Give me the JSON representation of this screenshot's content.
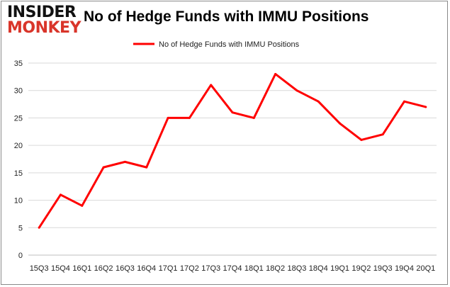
{
  "logo": {
    "line1": "INSIDER",
    "line2": "MONKEY"
  },
  "chart_data": {
    "type": "line",
    "title": "No of Hedge Funds with IMMU Positions",
    "categories": [
      "15Q3",
      "15Q4",
      "16Q1",
      "16Q2",
      "16Q3",
      "16Q4",
      "17Q1",
      "17Q2",
      "17Q3",
      "17Q4",
      "18Q1",
      "18Q2",
      "18Q3",
      "18Q4",
      "19Q1",
      "19Q2",
      "19Q3",
      "19Q4",
      "20Q1"
    ],
    "series": [
      {
        "name": "No of Hedge Funds with IMMU Positions",
        "color": "#ff0000",
        "values": [
          5,
          11,
          9,
          16,
          17,
          16,
          25,
          25,
          31,
          26,
          25,
          33,
          30,
          28,
          24,
          21,
          22,
          28,
          27
        ]
      }
    ],
    "yticks": [
      0,
      5,
      10,
      15,
      20,
      25,
      30,
      35
    ],
    "ylim": [
      0,
      35
    ],
    "grid": true,
    "legend": "top-center"
  }
}
